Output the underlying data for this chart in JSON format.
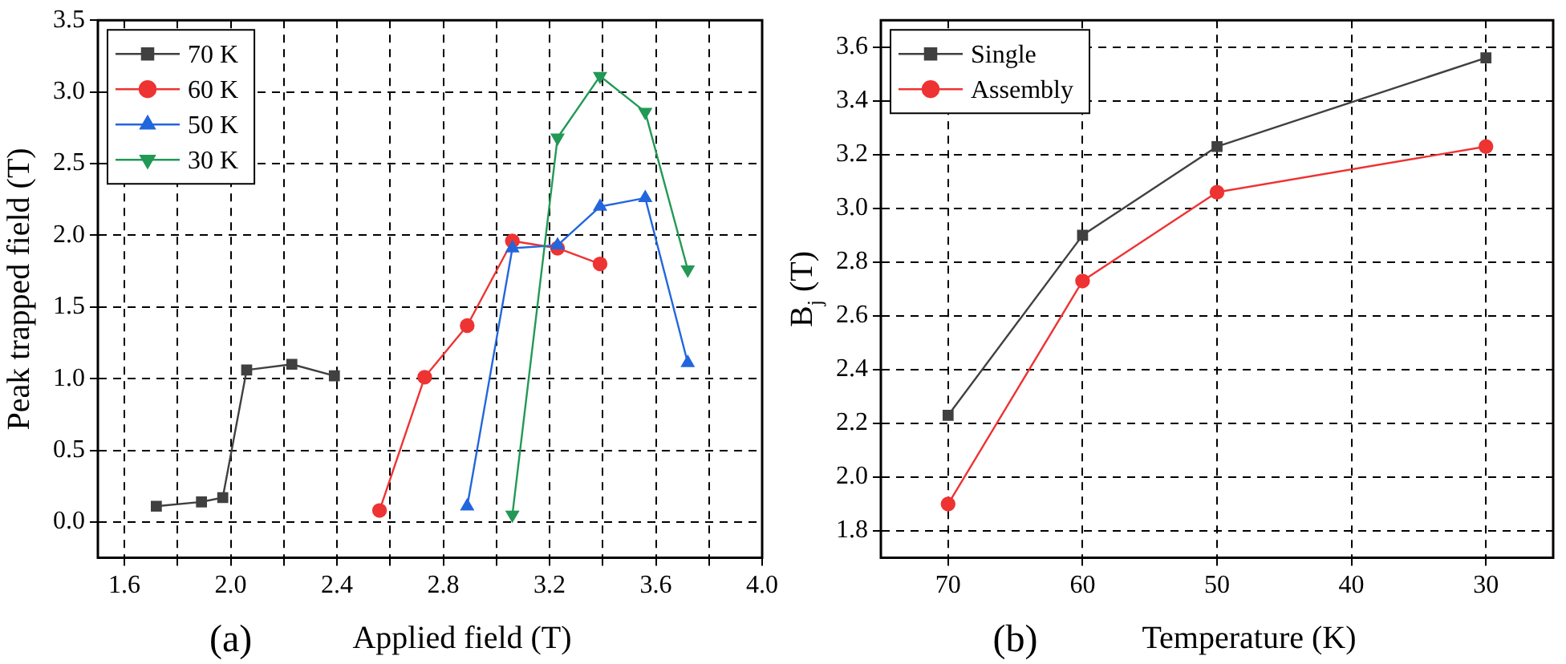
{
  "chart_data": [
    {
      "type": "line",
      "xlabel": "Applied field (T)",
      "ylabel": "Peak trapped field (T)",
      "annotations": [
        "(a)"
      ],
      "xlim": [
        1.5,
        4.0
      ],
      "xticks": [
        1.6,
        {
          "value": 1.8,
          "label": null
        },
        {
          "value": 2,
          "label": "2.0"
        },
        {
          "value": 2.2,
          "label": null
        },
        2.4,
        {
          "value": 2.6,
          "label": null
        },
        2.8,
        {
          "value": 3,
          "label": null
        },
        3.2,
        {
          "value": 3.4,
          "label": null
        },
        3.6,
        {
          "value": 3.8,
          "label": null
        },
        {
          "value": 4,
          "label": "4.0"
        }
      ],
      "ylim": [
        -0.25,
        3.5
      ],
      "yticks": [
        {
          "value": 0,
          "label": "0.0"
        },
        0.5,
        {
          "value": 1,
          "label": "1.0"
        },
        1.5,
        {
          "value": 2,
          "label": "2.0"
        },
        2.5,
        {
          "value": 3,
          "label": "3.0"
        },
        3.5
      ],
      "grid": true,
      "legend": "top left",
      "line_style": "solid",
      "series": [
        {
          "name": "70 K",
          "color": "#404040",
          "marker": "square",
          "x": [
            1.72,
            1.89,
            1.97,
            2.06,
            2.23,
            2.39
          ],
          "values": [
            0.11,
            0.14,
            0.17,
            1.06,
            1.1,
            1.02
          ]
        },
        {
          "name": "60 K",
          "color": "#ee3333",
          "marker": "circle",
          "x": [
            2.56,
            2.73,
            2.89,
            3.06,
            3.23,
            3.39
          ],
          "values": [
            0.08,
            1.01,
            1.37,
            1.96,
            1.91,
            1.8
          ]
        },
        {
          "name": "50 K",
          "color": "#2266dd",
          "marker": "triangle",
          "x": [
            2.89,
            3.06,
            3.23,
            3.39,
            3.56,
            3.72
          ],
          "values": [
            0.11,
            1.91,
            1.93,
            2.2,
            2.26,
            1.11
          ]
        },
        {
          "name": "30 K",
          "color": "#229955",
          "marker": "triangle-down",
          "x": [
            3.06,
            3.23,
            3.39,
            3.56,
            3.72
          ],
          "values": [
            0.05,
            2.68,
            3.11,
            2.86,
            1.76
          ]
        }
      ]
    },
    {
      "type": "line",
      "xlabel": "Temperature (K)",
      "ylabel": "B$_{j}$ (T)",
      "annotations": [
        "(b)"
      ],
      "xlim": [
        75,
        25
      ],
      "xticks": [
        70,
        60,
        50,
        40,
        30
      ],
      "ylim": [
        1.7,
        3.7
      ],
      "yticks": [
        1.8,
        {
          "value": 2,
          "label": "2.0"
        },
        2.2,
        2.4,
        2.6,
        2.8,
        {
          "value": 3,
          "label": "3.0"
        },
        3.2,
        3.4,
        3.6
      ],
      "grid": true,
      "legend": "top left",
      "line_style": "solid",
      "series": [
        {
          "name": "Single",
          "color": "#404040",
          "marker": "square",
          "x": [
            70,
            60,
            50,
            30
          ],
          "values": [
            2.23,
            2.9,
            3.23,
            3.56
          ]
        },
        {
          "name": "Assembly",
          "color": "#ee3333",
          "marker": "circle",
          "x": [
            70,
            60,
            50,
            30
          ],
          "values": [
            1.9,
            2.73,
            3.06,
            3.23
          ]
        }
      ]
    }
  ]
}
